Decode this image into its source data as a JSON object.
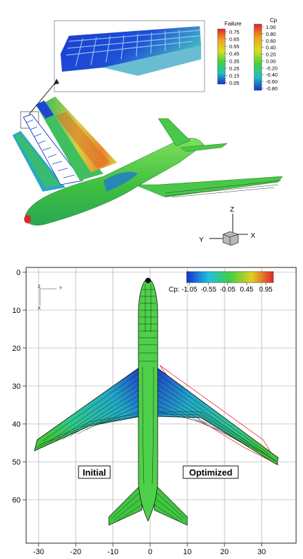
{
  "top_panel": {
    "failure_legend": {
      "title": "Failure",
      "labels": [
        "0.75",
        "0.65",
        "0.55",
        "0.45",
        "0.35",
        "0.25",
        "0.15",
        "0.05"
      ]
    },
    "cp_legend": {
      "title": "Cp",
      "labels": [
        "1.00",
        "0.80",
        "0.60",
        "0.40",
        "0.20",
        "0.00",
        "-0.20",
        "-0.40",
        "-0.60",
        "-0.80"
      ]
    },
    "axis_triad": {
      "z": "Z",
      "y": "Y",
      "x": "X"
    }
  },
  "bottom_panel": {
    "legend": {
      "prefix": "Cp:",
      "labels": [
        "-1.05",
        "-0.55",
        "-0.05",
        "0.45",
        "0.95"
      ]
    },
    "x_ticks": [
      "-30",
      "-20",
      "-10",
      "0",
      "10",
      "20",
      "30"
    ],
    "y_ticks": [
      "0",
      "10",
      "20",
      "30",
      "40",
      "50",
      "60"
    ],
    "mini_axis": {
      "z": "Z",
      "y": "Y",
      "x": "X"
    },
    "label_initial": "Initial",
    "label_optimized": "Optimized"
  },
  "colors": {
    "green": "#3fc63f",
    "cyan": "#2ec7c0",
    "blue": "#1e46d2",
    "orange": "#e8892e",
    "optimized_outline": "#e03030"
  }
}
